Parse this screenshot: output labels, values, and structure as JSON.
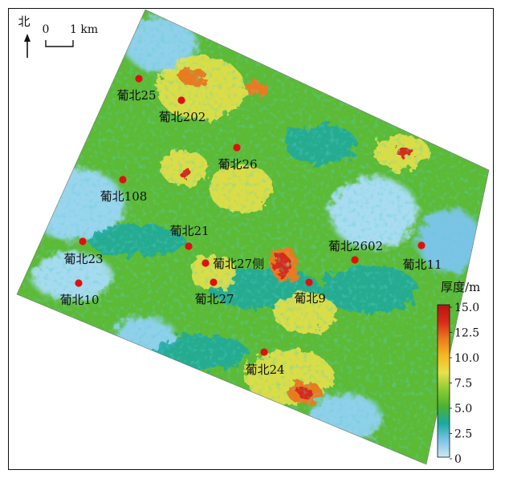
{
  "north_arrow": {
    "label": "北",
    "icon": "north-arrow-icon"
  },
  "scale_bar": {
    "start_label": "0",
    "end_label": "1 km"
  },
  "legend": {
    "title": "厚度/m",
    "ticks": [
      "15.0",
      "12.5",
      "10.0",
      "7.5",
      "5.0",
      "2.5",
      "0"
    ],
    "min": 0,
    "max": 15,
    "colors": [
      "#cfe9f2",
      "#7cc4e6",
      "#1aa8a0",
      "#4cb230",
      "#8ccc32",
      "#e8e24a",
      "#f6b820",
      "#ea7a1e",
      "#d62a1a",
      "#b81414"
    ]
  },
  "wells": [
    {
      "name": "葡北25"
    },
    {
      "name": "葡北202"
    },
    {
      "name": "葡北26"
    },
    {
      "name": "葡北108"
    },
    {
      "name": "葡北21"
    },
    {
      "name": "葡北23"
    },
    {
      "name": "葡北27侧"
    },
    {
      "name": "葡北27"
    },
    {
      "name": "葡北10"
    },
    {
      "name": "葡北2602"
    },
    {
      "name": "葡北11"
    },
    {
      "name": "葡北9"
    },
    {
      "name": "葡北24"
    }
  ],
  "colors": {
    "well_marker": "#e01010",
    "frame": "#111111"
  }
}
